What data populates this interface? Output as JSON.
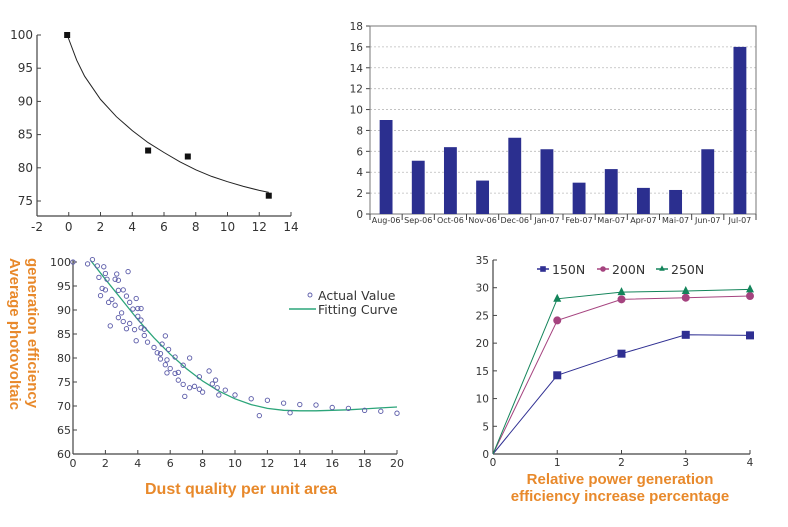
{
  "chart_data": [
    {
      "id": "fit-decay",
      "type": "scatter",
      "title": "",
      "xlabel": "",
      "ylabel": "",
      "xlim": [
        -2,
        14
      ],
      "ylim": [
        72.7,
        100
      ],
      "xticks": [
        -2,
        0,
        2,
        4,
        6,
        8,
        10,
        12,
        14
      ],
      "yticks": [
        75,
        80,
        85,
        90,
        95,
        100
      ],
      "points": [
        {
          "x": -0.1,
          "y": 100.0
        },
        {
          "x": 5.0,
          "y": 82.6
        },
        {
          "x": 7.5,
          "y": 81.7
        },
        {
          "x": 12.6,
          "y": 75.8
        }
      ],
      "fit_curve": [
        {
          "x": -0.1,
          "y": 100.0
        },
        {
          "x": 0.5,
          "y": 96.2
        },
        {
          "x": 1,
          "y": 93.8
        },
        {
          "x": 2,
          "y": 90.3
        },
        {
          "x": 3,
          "y": 87.7
        },
        {
          "x": 4,
          "y": 85.6
        },
        {
          "x": 5,
          "y": 83.8
        },
        {
          "x": 6,
          "y": 82.3
        },
        {
          "x": 7,
          "y": 80.9
        },
        {
          "x": 8,
          "y": 79.7
        },
        {
          "x": 9,
          "y": 78.7
        },
        {
          "x": 10,
          "y": 77.9
        },
        {
          "x": 11,
          "y": 77.2
        },
        {
          "x": 12,
          "y": 76.6
        },
        {
          "x": 12.6,
          "y": 76.3
        }
      ],
      "grid": false
    },
    {
      "id": "monthly-bars",
      "type": "bar",
      "title": "",
      "xlabel": "",
      "ylabel": "",
      "categories": [
        "Aug-06",
        "Sep-06",
        "Oct-06",
        "Nov-06",
        "Dec-06",
        "Jan-07",
        "Feb-07",
        "Mar-07",
        "Apr-07",
        "Mai-07",
        "Jun-07",
        "Jul-07"
      ],
      "values": [
        9.0,
        5.1,
        6.4,
        3.2,
        7.3,
        6.2,
        3.0,
        4.3,
        2.5,
        2.3,
        6.2,
        16.0
      ],
      "ylim": [
        0,
        18
      ],
      "yticks": [
        0,
        2,
        4,
        6,
        8,
        10,
        12,
        14,
        16,
        18
      ],
      "bar_color": "#2b2f8f",
      "grid": true
    },
    {
      "id": "dust-efficiency",
      "type": "scatter",
      "title": "",
      "xlabel": "Dust quality per unit area",
      "ylabel": "Average photovoltaic generation efficiency",
      "xlim": [
        0,
        20
      ],
      "ylim": [
        60,
        100
      ],
      "xticks": [
        0,
        2,
        4,
        6,
        8,
        10,
        12,
        14,
        16,
        18,
        20
      ],
      "yticks": [
        60,
        65,
        70,
        75,
        80,
        85,
        90,
        95,
        100
      ],
      "legend": {
        "position": "top-right",
        "entries": [
          "Actual Value",
          "Fitting Curve"
        ]
      },
      "series": [
        {
          "name": "Actual Value",
          "color": "#5a5aa8",
          "points": [
            {
              "x": 0.0,
              "y": 100.0
            },
            {
              "x": 0.9,
              "y": 99.6
            },
            {
              "x": 1.2,
              "y": 100.5
            },
            {
              "x": 1.5,
              "y": 99.2
            },
            {
              "x": 1.9,
              "y": 99.0
            },
            {
              "x": 1.6,
              "y": 96.8
            },
            {
              "x": 2.0,
              "y": 97.6
            },
            {
              "x": 2.1,
              "y": 96.4
            },
            {
              "x": 2.6,
              "y": 96.4
            },
            {
              "x": 2.7,
              "y": 97.5
            },
            {
              "x": 2.8,
              "y": 96.2
            },
            {
              "x": 3.4,
              "y": 98.0
            },
            {
              "x": 1.8,
              "y": 94.5
            },
            {
              "x": 2.0,
              "y": 94.2
            },
            {
              "x": 2.8,
              "y": 94.1
            },
            {
              "x": 3.1,
              "y": 94.2
            },
            {
              "x": 1.7,
              "y": 93.0
            },
            {
              "x": 3.3,
              "y": 92.9
            },
            {
              "x": 3.9,
              "y": 92.4
            },
            {
              "x": 2.2,
              "y": 91.6
            },
            {
              "x": 2.4,
              "y": 92.2
            },
            {
              "x": 2.6,
              "y": 91.0
            },
            {
              "x": 3.5,
              "y": 91.6
            },
            {
              "x": 3.7,
              "y": 90.2
            },
            {
              "x": 4.0,
              "y": 90.3
            },
            {
              "x": 4.2,
              "y": 90.3
            },
            {
              "x": 3.0,
              "y": 89.4
            },
            {
              "x": 2.8,
              "y": 88.4
            },
            {
              "x": 3.1,
              "y": 87.6
            },
            {
              "x": 4.0,
              "y": 88.7
            },
            {
              "x": 4.2,
              "y": 87.9
            },
            {
              "x": 3.5,
              "y": 87.2
            },
            {
              "x": 2.3,
              "y": 86.7
            },
            {
              "x": 3.3,
              "y": 86.1
            },
            {
              "x": 3.8,
              "y": 85.9
            },
            {
              "x": 4.2,
              "y": 86.3
            },
            {
              "x": 4.4,
              "y": 86.0
            },
            {
              "x": 4.4,
              "y": 84.7
            },
            {
              "x": 3.9,
              "y": 83.6
            },
            {
              "x": 4.6,
              "y": 83.3
            },
            {
              "x": 5.5,
              "y": 82.9
            },
            {
              "x": 5.7,
              "y": 84.6
            },
            {
              "x": 5.0,
              "y": 82.2
            },
            {
              "x": 5.2,
              "y": 81.1
            },
            {
              "x": 5.4,
              "y": 80.9
            },
            {
              "x": 5.9,
              "y": 81.8
            },
            {
              "x": 6.3,
              "y": 80.2
            },
            {
              "x": 5.4,
              "y": 79.8
            },
            {
              "x": 5.8,
              "y": 79.6
            },
            {
              "x": 6.0,
              "y": 77.8
            },
            {
              "x": 5.7,
              "y": 78.6
            },
            {
              "x": 6.8,
              "y": 78.5
            },
            {
              "x": 7.2,
              "y": 80.0
            },
            {
              "x": 5.8,
              "y": 76.9
            },
            {
              "x": 6.3,
              "y": 76.8
            },
            {
              "x": 6.5,
              "y": 77.0
            },
            {
              "x": 6.5,
              "y": 75.4
            },
            {
              "x": 6.8,
              "y": 74.5
            },
            {
              "x": 7.8,
              "y": 76.1
            },
            {
              "x": 8.4,
              "y": 77.3
            },
            {
              "x": 7.2,
              "y": 73.8
            },
            {
              "x": 7.5,
              "y": 74.1
            },
            {
              "x": 7.8,
              "y": 73.5
            },
            {
              "x": 8.0,
              "y": 72.9
            },
            {
              "x": 6.9,
              "y": 72.0
            },
            {
              "x": 8.6,
              "y": 74.6
            },
            {
              "x": 8.9,
              "y": 73.8
            },
            {
              "x": 9.0,
              "y": 72.3
            },
            {
              "x": 9.4,
              "y": 73.3
            },
            {
              "x": 8.8,
              "y": 75.4
            },
            {
              "x": 10.0,
              "y": 72.3
            },
            {
              "x": 11.0,
              "y": 71.5
            },
            {
              "x": 12.0,
              "y": 71.2
            },
            {
              "x": 11.5,
              "y": 68.0
            },
            {
              "x": 13.0,
              "y": 70.6
            },
            {
              "x": 13.4,
              "y": 68.6
            },
            {
              "x": 14.0,
              "y": 70.3
            },
            {
              "x": 15.0,
              "y": 70.2
            },
            {
              "x": 16.0,
              "y": 69.7
            },
            {
              "x": 17.0,
              "y": 69.5
            },
            {
              "x": 18.0,
              "y": 69.1
            },
            {
              "x": 19.0,
              "y": 68.9
            },
            {
              "x": 20.0,
              "y": 68.5
            }
          ]
        },
        {
          "name": "Fitting Curve",
          "type": "line",
          "color": "#2ca57a",
          "points": [
            {
              "x": 1.1,
              "y": 100.3
            },
            {
              "x": 2,
              "y": 96.4
            },
            {
              "x": 3,
              "y": 92.2
            },
            {
              "x": 4,
              "y": 88.0
            },
            {
              "x": 5,
              "y": 84.2
            },
            {
              "x": 6,
              "y": 80.8
            },
            {
              "x": 7,
              "y": 77.8
            },
            {
              "x": 8,
              "y": 75.2
            },
            {
              "x": 9,
              "y": 73.1
            },
            {
              "x": 10,
              "y": 71.5
            },
            {
              "x": 11,
              "y": 70.3
            },
            {
              "x": 12,
              "y": 69.5
            },
            {
              "x": 13,
              "y": 69.1
            },
            {
              "x": 14,
              "y": 69.0
            },
            {
              "x": 15,
              "y": 69.0
            },
            {
              "x": 16,
              "y": 69.1
            },
            {
              "x": 17,
              "y": 69.2
            },
            {
              "x": 18,
              "y": 69.4
            },
            {
              "x": 19,
              "y": 69.6
            },
            {
              "x": 20,
              "y": 69.8
            }
          ]
        }
      ]
    },
    {
      "id": "pressure-lines",
      "type": "line",
      "title": "",
      "xlabel": "Relative power generation efficiency increase percentage",
      "xlabel_lines": [
        "Relative power generation",
        "efficiency increase percentage"
      ],
      "ylabel": "",
      "x": [
        0,
        1,
        2,
        3,
        4
      ],
      "xlim": [
        0,
        4
      ],
      "ylim": [
        0,
        35
      ],
      "xticks": [
        0,
        1,
        2,
        3,
        4
      ],
      "yticks": [
        0,
        5,
        10,
        15,
        20,
        25,
        30,
        35
      ],
      "legend": {
        "position": "top",
        "entries": [
          "150N",
          "200N",
          "250N"
        ]
      },
      "series": [
        {
          "name": "150N",
          "marker": "square",
          "color": "#2f2f92",
          "values": [
            0,
            14.2,
            18.1,
            21.5,
            21.4
          ]
        },
        {
          "name": "200N",
          "marker": "circle",
          "color": "#a5437f",
          "values": [
            0,
            24.1,
            27.9,
            28.2,
            28.5
          ]
        },
        {
          "name": "250N",
          "marker": "triangle",
          "color": "#13845a",
          "values": [
            0,
            28.0,
            29.2,
            29.4,
            29.7
          ]
        }
      ],
      "grid": false
    }
  ]
}
